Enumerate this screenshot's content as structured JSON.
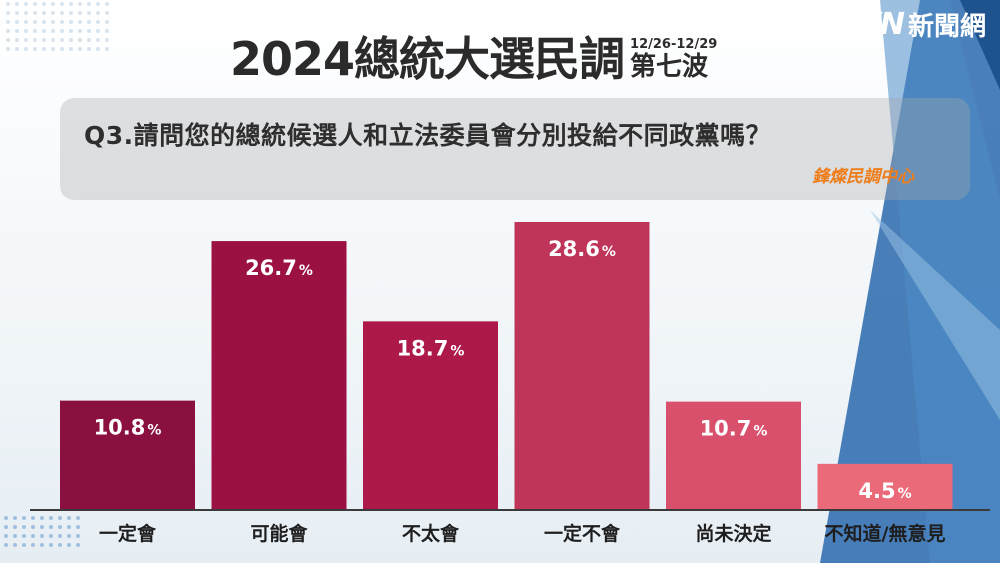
{
  "header": {
    "title": "2024總統大選民調",
    "date_range": "12/26-12/29",
    "wave": "第七波",
    "brand_logo": "FTVN",
    "brand_name": "新聞網"
  },
  "question": "Q3.請問您的總統候選人和立法委員會分別投給不同政黨嗎？",
  "source": "鋒燦民調中心",
  "colors": {
    "bars": [
      "#8a1040",
      "#9b1144",
      "#ad1a4a",
      "#bf3459",
      "#d9506c",
      "#ea6a7a"
    ],
    "accent_blue": "#1e63a8"
  },
  "chart_data": {
    "type": "bar",
    "categories": [
      "一定會",
      "可能會",
      "不太會",
      "一定不會",
      "尚未決定",
      "不知道/無意見"
    ],
    "values": [
      10.8,
      26.7,
      18.7,
      28.6,
      10.7,
      4.5
    ],
    "value_labels": [
      "10.8",
      "26.7",
      "18.7",
      "28.6",
      "10.7",
      "4.5"
    ],
    "unit": "%",
    "ylim": [
      0,
      30
    ],
    "grid": false,
    "legend": "none"
  }
}
